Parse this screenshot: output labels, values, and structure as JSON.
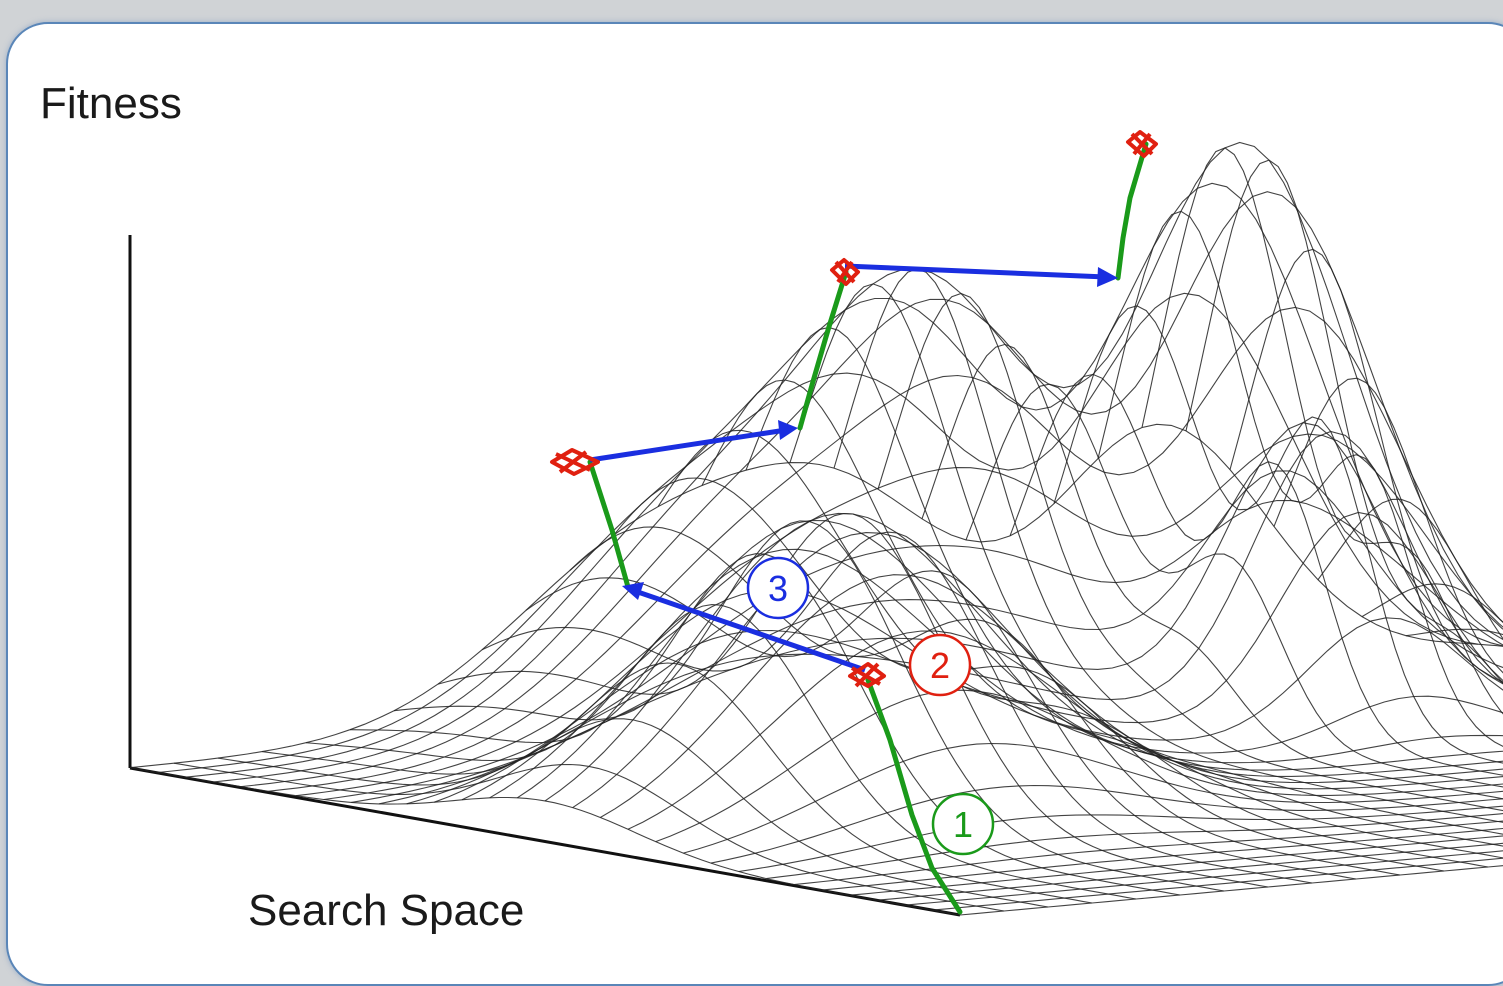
{
  "diagram": {
    "y_axis_label": "Fitness",
    "x_axis_label": "Search Space",
    "markers": [
      {
        "id": "step-1",
        "label": "1",
        "color": "#1a9a1a"
      },
      {
        "id": "step-2",
        "label": "2",
        "color": "#e02010"
      },
      {
        "id": "step-3",
        "label": "3",
        "color": "#1a2ee0"
      }
    ],
    "colors": {
      "hill_climb_path": "#1a9a1a",
      "local_optimum_marker": "#e02010",
      "jump_arrow": "#1a2ee0",
      "mesh": "#222222",
      "card_border": "#5a86b8",
      "background": "#d0d3d6"
    }
  }
}
